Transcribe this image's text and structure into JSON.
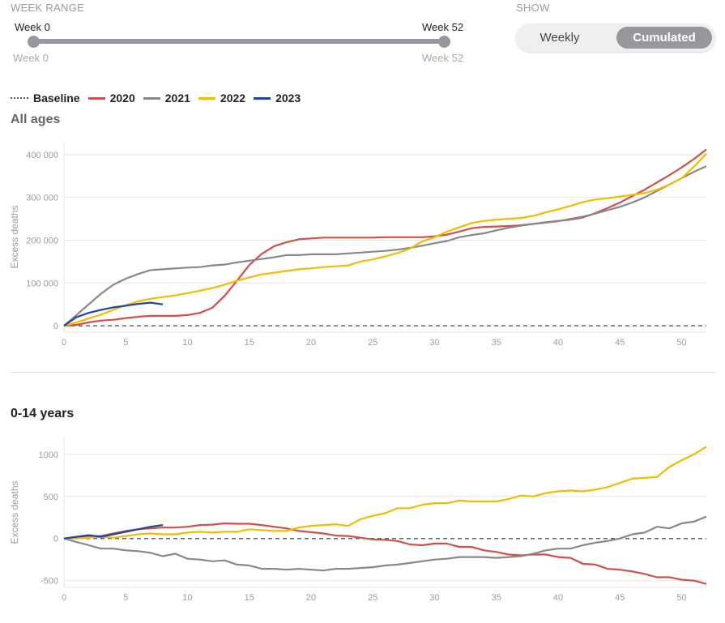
{
  "controls": {
    "week_range": {
      "label": "WEEK RANGE",
      "start_label": "Week 0",
      "end_label": "Week 52",
      "min_label": "Week 0",
      "max_label": "Week 52",
      "start": 0,
      "end": 52
    },
    "show": {
      "label": "SHOW",
      "options": [
        "Weekly",
        "Cumulated"
      ],
      "selected": "Cumulated"
    }
  },
  "legend": [
    {
      "name": "Baseline",
      "color": "#555555",
      "style": "dashed"
    },
    {
      "name": "2020",
      "color": "#d0504a"
    },
    {
      "name": "2021",
      "color": "#888888"
    },
    {
      "name": "2022",
      "color": "#f0bd00"
    },
    {
      "name": "2023",
      "color": "#1f45a0"
    }
  ],
  "chart_data": [
    {
      "type": "line",
      "title": "All ages",
      "xlabel": "",
      "ylabel": "Excess deaths",
      "xlim": [
        0,
        52
      ],
      "ylim": [
        -15000,
        430000
      ],
      "xticks": [
        0,
        5,
        10,
        15,
        20,
        25,
        30,
        35,
        40,
        45,
        50
      ],
      "yticks": [
        0,
        100000,
        200000,
        300000,
        400000
      ],
      "ytick_labels": [
        "0",
        "100 000",
        "200 000",
        "300 000",
        "400 000"
      ],
      "grid": true,
      "series": [
        {
          "name": "2020",
          "color": "#d0504a",
          "values": [
            0,
            2000,
            8000,
            12000,
            14000,
            18000,
            21000,
            23000,
            23000,
            23000,
            25000,
            30000,
            42000,
            70000,
            105000,
            142000,
            168000,
            186000,
            195000,
            202000,
            204000,
            206000,
            206000,
            206000,
            206000,
            206000,
            207000,
            207000,
            207000,
            207000,
            209000,
            213000,
            220000,
            228000,
            231000,
            232000,
            233000,
            235000,
            238000,
            242000,
            245000,
            248000,
            253000,
            263000,
            275000,
            288000,
            303000,
            318000,
            335000,
            352000,
            370000,
            390000,
            412000
          ]
        },
        {
          "name": "2021",
          "color": "#888888",
          "values": [
            0,
            25000,
            50000,
            75000,
            96000,
            110000,
            121000,
            130000,
            132000,
            134000,
            136000,
            137000,
            141000,
            143000,
            148000,
            152000,
            156000,
            160000,
            165000,
            165000,
            167000,
            167000,
            167000,
            169000,
            171000,
            173000,
            175000,
            178000,
            182000,
            187000,
            193000,
            198000,
            207000,
            212000,
            216000,
            223000,
            229000,
            234000,
            238000,
            241000,
            244000,
            250000,
            255000,
            262000,
            270000,
            278000,
            288000,
            300000,
            315000,
            330000,
            345000,
            360000,
            373000
          ]
        },
        {
          "name": "2022",
          "color": "#f0bd00",
          "values": [
            0,
            8000,
            17000,
            26000,
            37000,
            48000,
            57000,
            63000,
            67000,
            71000,
            76000,
            82000,
            88000,
            96000,
            105000,
            113000,
            120000,
            124000,
            128000,
            132000,
            134000,
            137000,
            139000,
            141000,
            150000,
            155000,
            162000,
            170000,
            180000,
            197000,
            207000,
            220000,
            230000,
            240000,
            245000,
            248000,
            250000,
            252000,
            257000,
            265000,
            272000,
            280000,
            289000,
            295000,
            298000,
            302000,
            306000,
            310000,
            318000,
            330000,
            345000,
            372000,
            402000
          ]
        },
        {
          "name": "2023",
          "color": "#1f45a0",
          "values": [
            0,
            20000,
            30000,
            37000,
            43000,
            47000,
            51000,
            54000,
            50000
          ]
        }
      ]
    },
    {
      "type": "line",
      "title": "0-14 years",
      "xlabel": "",
      "ylabel": "Excess deaths",
      "xlim": [
        0,
        52
      ],
      "ylim": [
        -580,
        1200
      ],
      "xticks": [
        0,
        5,
        10,
        15,
        20,
        25,
        30,
        35,
        40,
        45,
        50
      ],
      "yticks": [
        -500,
        0,
        500,
        1000
      ],
      "ytick_labels": [
        "-500",
        "0",
        "500",
        "1000"
      ],
      "grid": true,
      "series": [
        {
          "name": "2020",
          "color": "#d0504a",
          "values": [
            0,
            10,
            20,
            30,
            60,
            90,
            110,
            120,
            130,
            130,
            140,
            160,
            165,
            180,
            175,
            175,
            160,
            140,
            120,
            90,
            75,
            60,
            35,
            30,
            10,
            -10,
            -15,
            -30,
            -70,
            -80,
            -60,
            -60,
            -100,
            -100,
            -140,
            -160,
            -190,
            -200,
            -190,
            -190,
            -220,
            -230,
            -300,
            -310,
            -360,
            -370,
            -390,
            -420,
            -460,
            -460,
            -490,
            -500,
            -540
          ]
        },
        {
          "name": "2021",
          "color": "#888888",
          "values": [
            0,
            -40,
            -80,
            -120,
            -120,
            -140,
            -150,
            -170,
            -210,
            -180,
            -240,
            -250,
            -270,
            -260,
            -310,
            -320,
            -360,
            -360,
            -370,
            -360,
            -370,
            -380,
            -360,
            -360,
            -350,
            -340,
            -320,
            -310,
            -290,
            -270,
            -250,
            -240,
            -220,
            -220,
            -220,
            -230,
            -220,
            -210,
            -180,
            -140,
            -120,
            -120,
            -80,
            -50,
            -30,
            0,
            50,
            70,
            140,
            120,
            180,
            200,
            260
          ]
        },
        {
          "name": "2022",
          "color": "#f0bd00",
          "values": [
            0,
            0,
            10,
            20,
            10,
            30,
            50,
            60,
            50,
            50,
            70,
            80,
            70,
            80,
            80,
            110,
            100,
            90,
            90,
            130,
            150,
            160,
            170,
            150,
            230,
            270,
            300,
            360,
            360,
            400,
            420,
            420,
            450,
            440,
            440,
            440,
            470,
            510,
            500,
            540,
            560,
            570,
            560,
            580,
            610,
            660,
            710,
            720,
            730,
            850,
            930,
            1000,
            1090
          ]
        },
        {
          "name": "2023",
          "color": "#1f45a0",
          "values": [
            0,
            20,
            40,
            20,
            50,
            80,
            110,
            140,
            160
          ]
        }
      ]
    }
  ]
}
